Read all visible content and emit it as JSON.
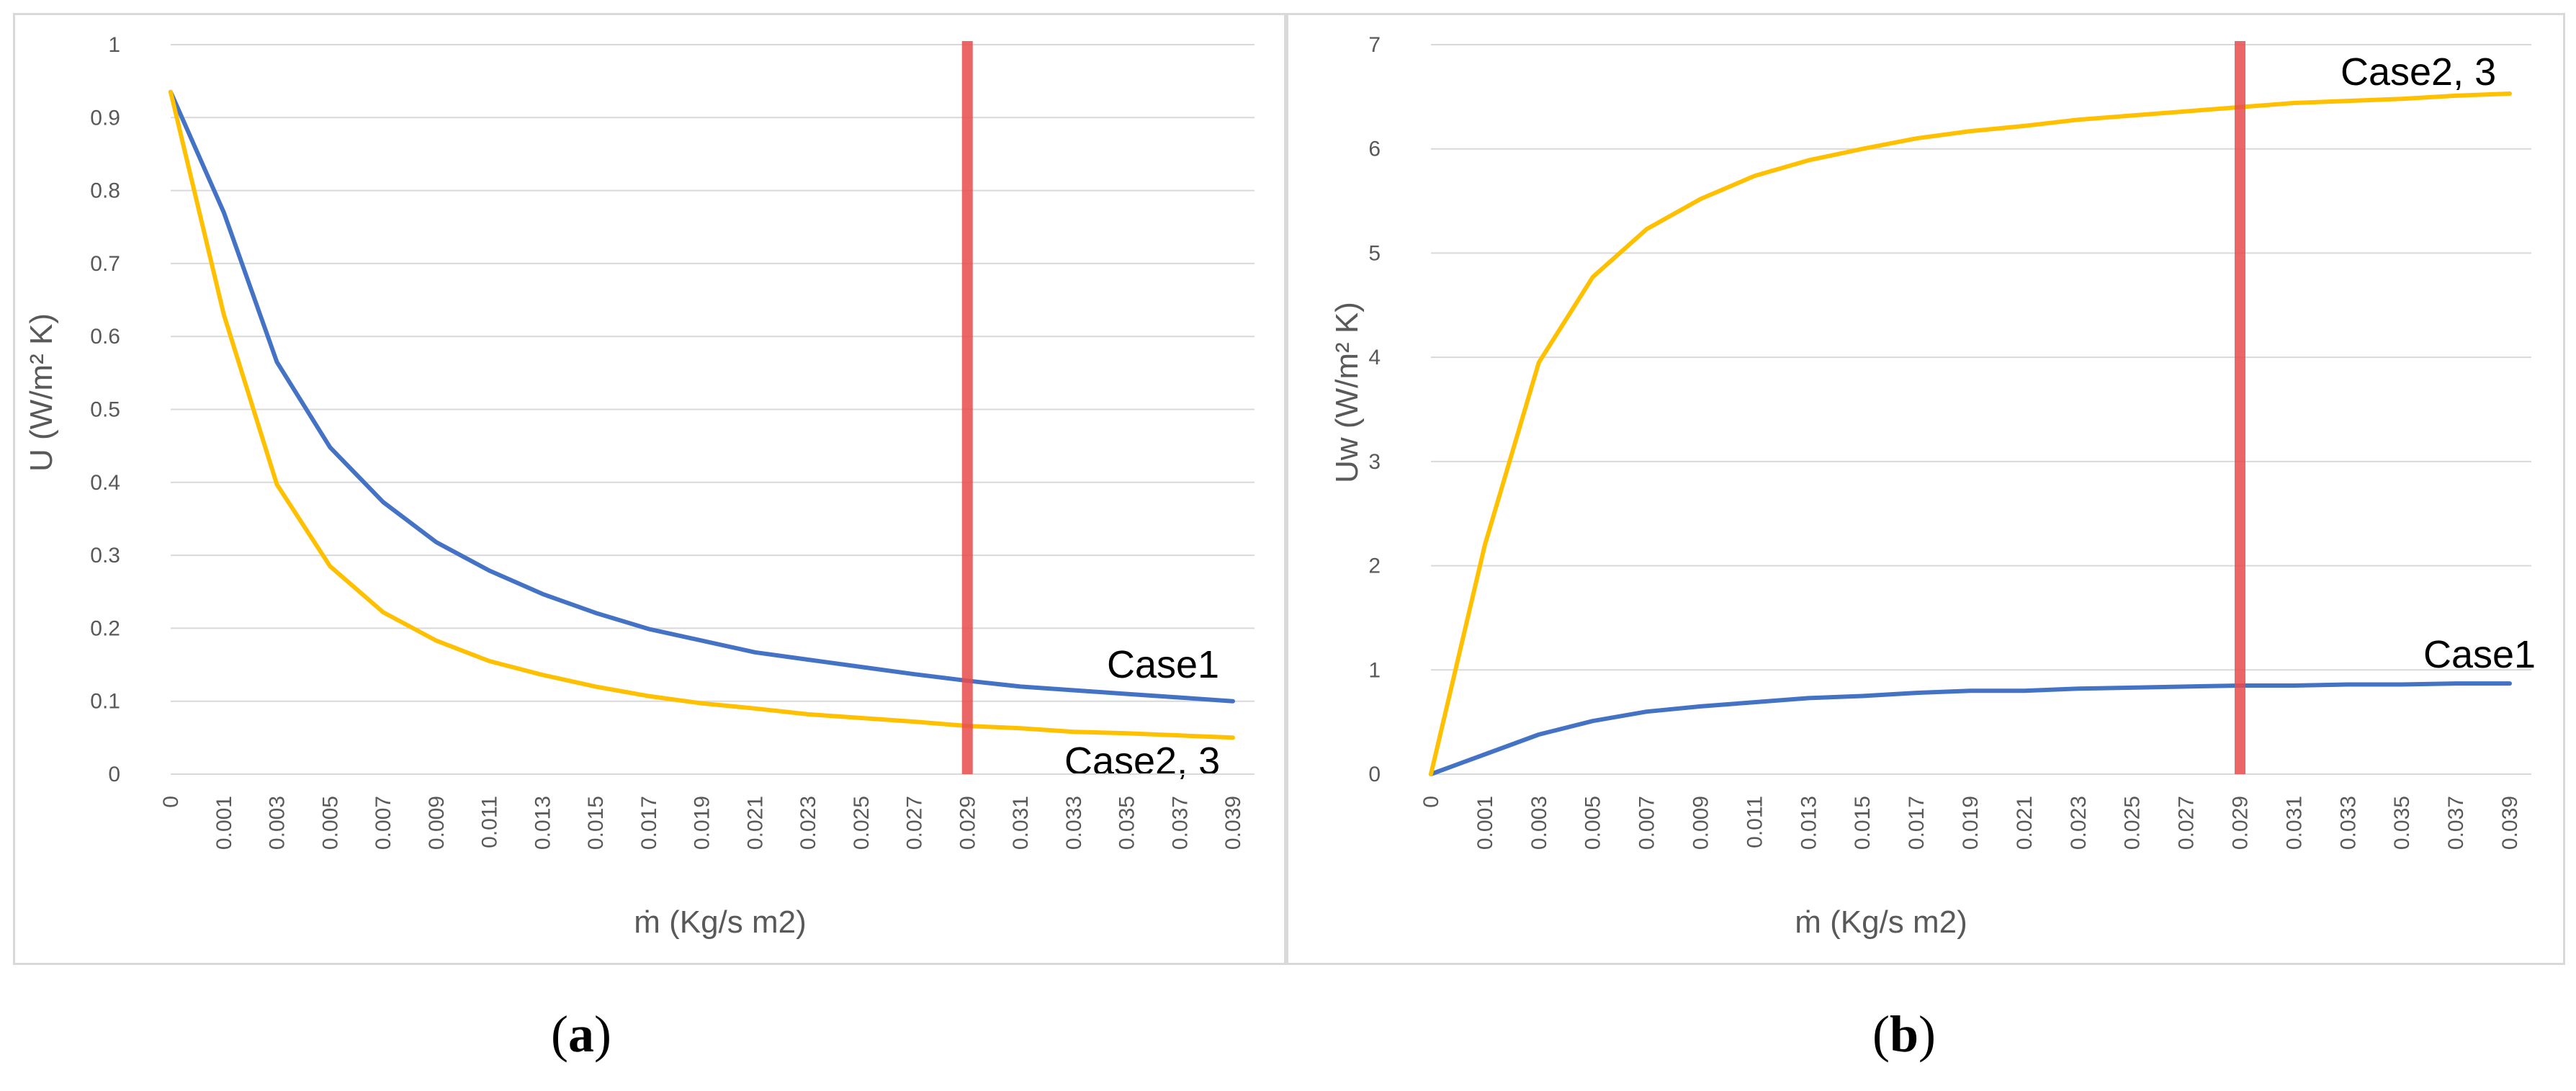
{
  "colors": {
    "case1": "#4472C4",
    "case23": "#FFC000",
    "marker": "#E84C4C",
    "grid": "#D9D9D9"
  },
  "x_categories": [
    "0",
    "0.001",
    "0.003",
    "0.005",
    "0.007",
    "0.009",
    "0.011",
    "0.013",
    "0.015",
    "0.017",
    "0.019",
    "0.021",
    "0.023",
    "0.025",
    "0.027",
    "0.029",
    "0.031",
    "0.033",
    "0.035",
    "0.037",
    "0.039"
  ],
  "panels": [
    {
      "label_open": "(",
      "label_letter": "a",
      "label_close": ")"
    },
    {
      "label_open": "(",
      "label_letter": "b",
      "label_close": ")"
    }
  ],
  "chart_data": [
    {
      "type": "line",
      "categories": [
        "0",
        "0.001",
        "0.003",
        "0.005",
        "0.007",
        "0.009",
        "0.011",
        "0.013",
        "0.015",
        "0.017",
        "0.019",
        "0.021",
        "0.023",
        "0.025",
        "0.027",
        "0.029",
        "0.031",
        "0.033",
        "0.035",
        "0.037",
        "0.039"
      ],
      "series": [
        {
          "name": "Case1",
          "values": [
            0.935,
            0.77,
            0.565,
            0.448,
            0.373,
            0.318,
            0.279,
            0.247,
            0.221,
            0.199,
            0.183,
            0.167,
            0.157,
            0.147,
            0.137,
            0.128,
            0.12,
            0.115,
            0.11,
            0.105,
            0.1
          ]
        },
        {
          "name": "Case2, 3",
          "values": [
            0.935,
            0.63,
            0.397,
            0.285,
            0.222,
            0.183,
            0.155,
            0.136,
            0.12,
            0.107,
            0.097,
            0.09,
            0.082,
            0.077,
            0.072,
            0.066,
            0.063,
            0.058,
            0.056,
            0.053,
            0.05
          ]
        }
      ],
      "xlabel": "ṁ (Kg/s m2)",
      "ylabel": "U (W/m² K)",
      "ylim": [
        0,
        1
      ],
      "yticks": [
        "0",
        "0.1",
        "0.2",
        "0.3",
        "0.4",
        "0.5",
        "0.6",
        "0.7",
        "0.8",
        "0.9",
        "1"
      ],
      "vertical_marker_x": 0.029,
      "grid": true,
      "annotations": [
        "Case1",
        "Case2, 3"
      ]
    },
    {
      "type": "line",
      "categories": [
        "0",
        "0.001",
        "0.003",
        "0.005",
        "0.007",
        "0.009",
        "0.011",
        "0.013",
        "0.015",
        "0.017",
        "0.019",
        "0.021",
        "0.023",
        "0.025",
        "0.027",
        "0.029",
        "0.031",
        "0.033",
        "0.035",
        "0.037",
        "0.039"
      ],
      "series": [
        {
          "name": "Case1",
          "values": [
            0,
            0.19,
            0.38,
            0.51,
            0.6,
            0.65,
            0.69,
            0.73,
            0.75,
            0.78,
            0.8,
            0.8,
            0.82,
            0.83,
            0.84,
            0.85,
            0.85,
            0.86,
            0.86,
            0.87,
            0.87
          ]
        },
        {
          "name": "Case2, 3",
          "values": [
            0,
            2.2,
            3.95,
            4.77,
            5.23,
            5.52,
            5.74,
            5.89,
            6.0,
            6.1,
            6.17,
            6.22,
            6.28,
            6.32,
            6.36,
            6.4,
            6.44,
            6.46,
            6.48,
            6.51,
            6.53
          ]
        }
      ],
      "xlabel": "ṁ (Kg/s m2)",
      "ylabel": "Uw (W/m² K)",
      "ylim": [
        0,
        7
      ],
      "yticks": [
        "0",
        "1",
        "2",
        "3",
        "4",
        "5",
        "6",
        "7"
      ],
      "vertical_marker_x": 0.029,
      "grid": true,
      "annotations": [
        "Case2, 3",
        "Case1"
      ]
    }
  ]
}
